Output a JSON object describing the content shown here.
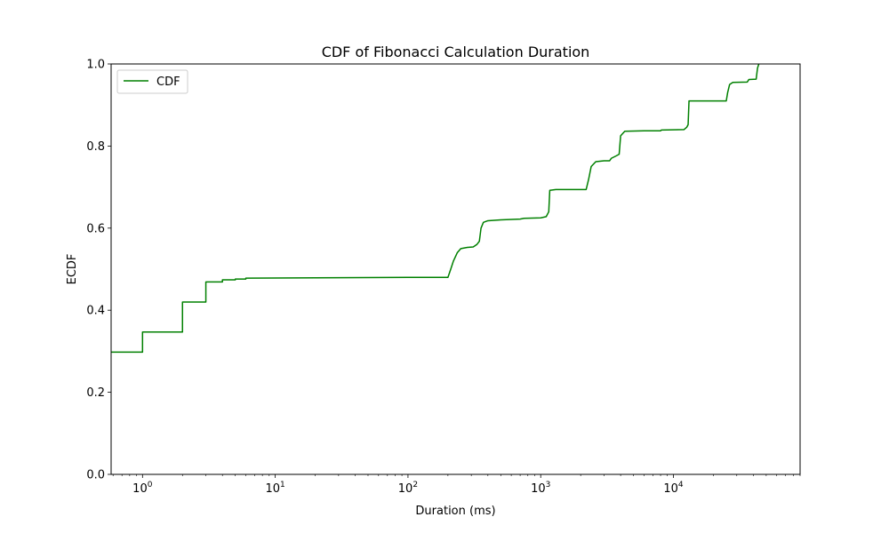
{
  "chart_data": {
    "type": "line",
    "title": "CDF of Fibonacci Calculation Duration",
    "xlabel": "Duration (ms)",
    "ylabel": "ECDF",
    "xscale": "log",
    "xlim": [
      0.58,
      90000
    ],
    "ylim": [
      0,
      1.0
    ],
    "grid": false,
    "legend_position": "top-left",
    "x_ticks": [
      {
        "value": 1,
        "label": "10^0"
      },
      {
        "value": 10,
        "label": "10^1"
      },
      {
        "value": 100,
        "label": "10^2"
      },
      {
        "value": 1000,
        "label": "10^3"
      },
      {
        "value": 10000,
        "label": "10^4"
      }
    ],
    "y_ticks": [
      {
        "value": 0.0,
        "label": "0.0"
      },
      {
        "value": 0.2,
        "label": "0.2"
      },
      {
        "value": 0.4,
        "label": "0.4"
      },
      {
        "value": 0.6,
        "label": "0.6"
      },
      {
        "value": 0.8,
        "label": "0.8"
      },
      {
        "value": 1.0,
        "label": "1.0"
      }
    ],
    "series": [
      {
        "name": "CDF",
        "color": "#008000",
        "points": [
          [
            0.58,
            0.298
          ],
          [
            1.0,
            0.298
          ],
          [
            1.0,
            0.347
          ],
          [
            2.0,
            0.347
          ],
          [
            2.0,
            0.42
          ],
          [
            3.0,
            0.42
          ],
          [
            3.0,
            0.469
          ],
          [
            4.0,
            0.469
          ],
          [
            4.0,
            0.474
          ],
          [
            5.0,
            0.474
          ],
          [
            5.0,
            0.476
          ],
          [
            6.0,
            0.476
          ],
          [
            6.0,
            0.478
          ],
          [
            20,
            0.479
          ],
          [
            100,
            0.48
          ],
          [
            200,
            0.48
          ],
          [
            210,
            0.5
          ],
          [
            220,
            0.52
          ],
          [
            235,
            0.54
          ],
          [
            250,
            0.55
          ],
          [
            280,
            0.553
          ],
          [
            310,
            0.554
          ],
          [
            330,
            0.56
          ],
          [
            345,
            0.568
          ],
          [
            355,
            0.6
          ],
          [
            370,
            0.614
          ],
          [
            400,
            0.618
          ],
          [
            500,
            0.62
          ],
          [
            700,
            0.622
          ],
          [
            750,
            0.624
          ],
          [
            1000,
            0.625
          ],
          [
            1100,
            0.628
          ],
          [
            1150,
            0.64
          ],
          [
            1170,
            0.692
          ],
          [
            1300,
            0.694
          ],
          [
            2000,
            0.694
          ],
          [
            2200,
            0.694
          ],
          [
            2300,
            0.72
          ],
          [
            2400,
            0.75
          ],
          [
            2600,
            0.762
          ],
          [
            3000,
            0.764
          ],
          [
            3300,
            0.764
          ],
          [
            3400,
            0.77
          ],
          [
            3700,
            0.776
          ],
          [
            3900,
            0.78
          ],
          [
            4000,
            0.825
          ],
          [
            4300,
            0.836
          ],
          [
            6000,
            0.837
          ],
          [
            8000,
            0.837
          ],
          [
            8100,
            0.839
          ],
          [
            12000,
            0.84
          ],
          [
            12600,
            0.846
          ],
          [
            12900,
            0.852
          ],
          [
            13100,
            0.91
          ],
          [
            15000,
            0.91
          ],
          [
            25000,
            0.91
          ],
          [
            25600,
            0.93
          ],
          [
            26500,
            0.95
          ],
          [
            28000,
            0.955
          ],
          [
            36000,
            0.956
          ],
          [
            37000,
            0.962
          ],
          [
            42000,
            0.963
          ],
          [
            43000,
            0.99
          ],
          [
            44000,
            1.0
          ]
        ]
      }
    ]
  }
}
